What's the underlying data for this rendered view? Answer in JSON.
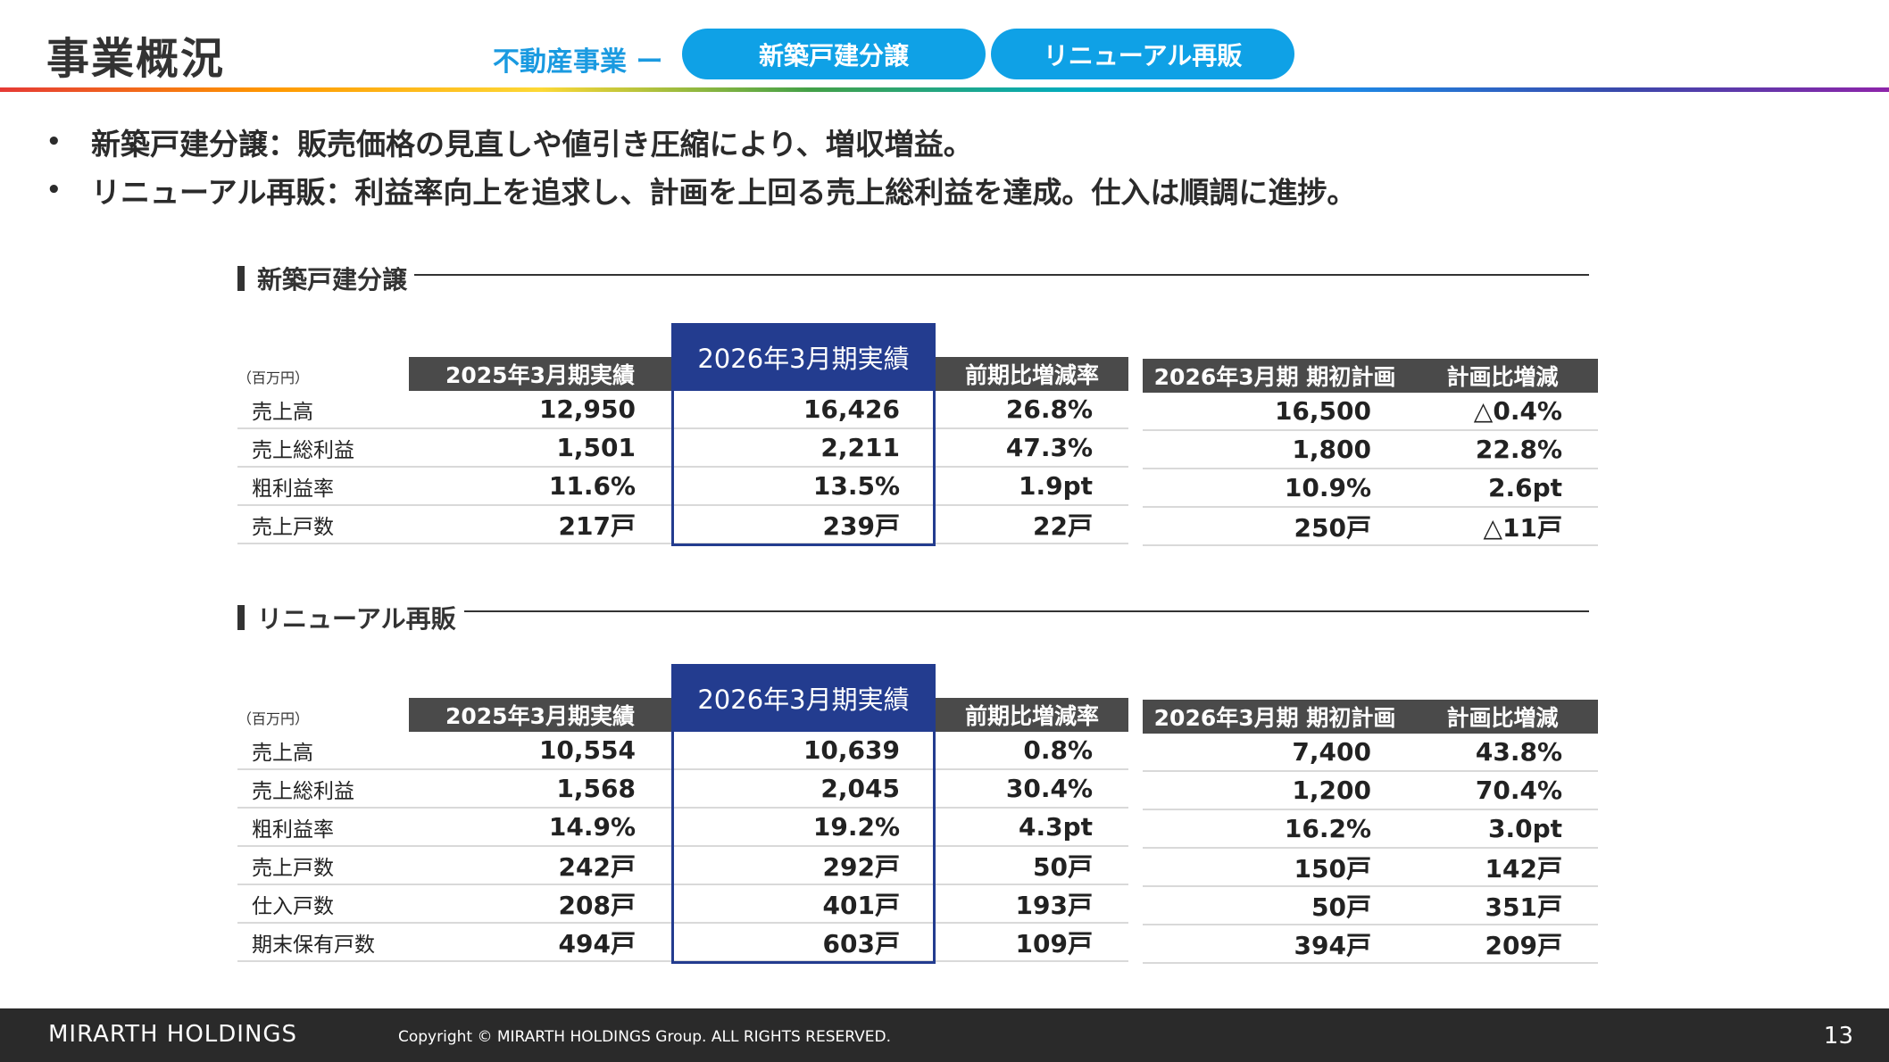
{
  "header": {
    "title": "事業概況",
    "segment_label": "不動産事業 ー",
    "tabs": [
      "新築戸建分譲",
      "リニューアル再販"
    ]
  },
  "bullets": [
    "新築戸建分譲：販売価格の見直しや値引き圧縮により、増収増益。",
    "リニューアル再販：利益率向上を追求し、計画を上回る売上総利益を達成。仕入は順調に進捗。"
  ],
  "sections": [
    {
      "title": "新築戸建分譲",
      "unit": "（百万円）",
      "columns": [
        "2025年3月期実績",
        "2026年3月期実績",
        "前期比増減率"
      ],
      "plan_columns": [
        "2026年3月期 期初計画",
        "計画比増減"
      ],
      "rows": [
        {
          "label": "売上高",
          "prev": "12,950",
          "curr": "16,426",
          "yoy": "26.8%",
          "plan": "16,500",
          "diff": "△0.4%"
        },
        {
          "label": "売上総利益",
          "prev": "1,501",
          "curr": "2,211",
          "yoy": "47.3%",
          "plan": "1,800",
          "diff": "22.8%"
        },
        {
          "label": "粗利益率",
          "prev": "11.6%",
          "curr": "13.5%",
          "yoy": "1.9pt",
          "plan": "10.9%",
          "diff": "2.6pt"
        },
        {
          "label": "売上戸数",
          "prev": "217戸",
          "curr": "239戸",
          "yoy": "22戸",
          "plan": "250戸",
          "diff": "△11戸"
        }
      ]
    },
    {
      "title": "リニューアル再販",
      "unit": "（百万円）",
      "columns": [
        "2025年3月期実績",
        "2026年3月期実績",
        "前期比増減率"
      ],
      "plan_columns": [
        "2026年3月期 期初計画",
        "計画比増減"
      ],
      "rows": [
        {
          "label": "売上高",
          "prev": "10,554",
          "curr": "10,639",
          "yoy": "0.8%",
          "plan": "7,400",
          "diff": "43.8%"
        },
        {
          "label": "売上総利益",
          "prev": "1,568",
          "curr": "2,045",
          "yoy": "30.4%",
          "plan": "1,200",
          "diff": "70.4%"
        },
        {
          "label": "粗利益率",
          "prev": "14.9%",
          "curr": "19.2%",
          "yoy": "4.3pt",
          "plan": "16.2%",
          "diff": "3.0pt"
        },
        {
          "label": "売上戸数",
          "prev": "242戸",
          "curr": "292戸",
          "yoy": "50戸",
          "plan": "150戸",
          "diff": "142戸"
        },
        {
          "label": "仕入戸数",
          "prev": "208戸",
          "curr": "401戸",
          "yoy": "193戸",
          "plan": "50戸",
          "diff": "351戸"
        },
        {
          "label": "期末保有戸数",
          "prev": "494戸",
          "curr": "603戸",
          "yoy": "109戸",
          "plan": "394戸",
          "diff": "209戸"
        }
      ]
    }
  ],
  "footer": {
    "logo": "MIRARTH HOLDINGS",
    "copyright": "Copyright © MIRARTH HOLDINGS Group. ALL RIGHTS RESERVED.",
    "page_number": "13"
  },
  "colors": {
    "accent": "#0fa1e6",
    "highlight": "#233c8f",
    "header_gray": "#4a4a4a"
  }
}
